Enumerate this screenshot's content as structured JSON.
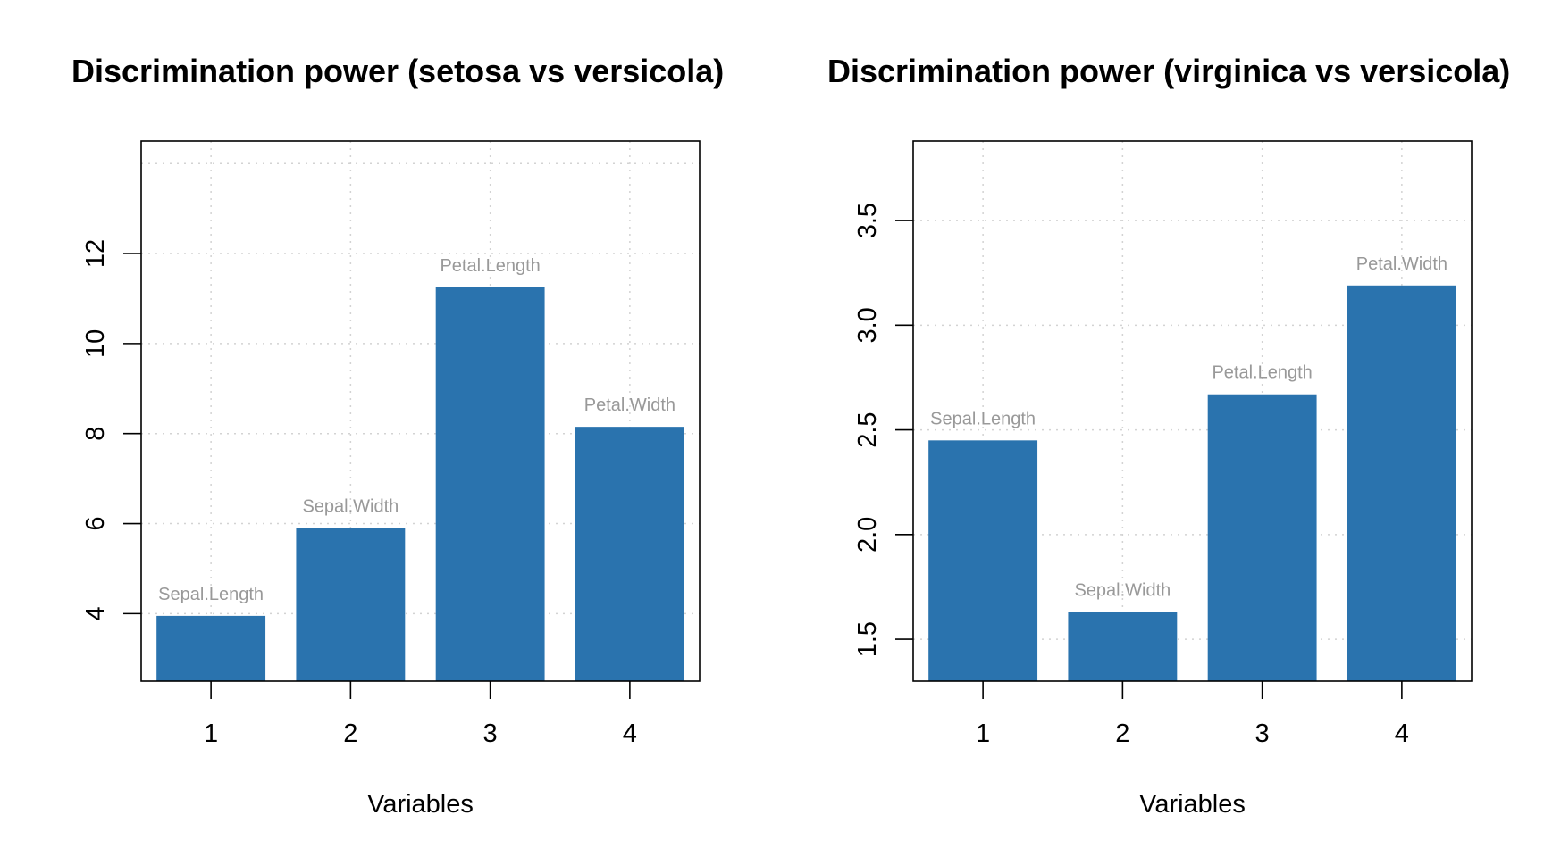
{
  "chart_data": [
    {
      "type": "bar",
      "title": "Discrimination power (setosa vs versicola)",
      "xlabel": "Variables",
      "ylabel": "",
      "categories": [
        "1",
        "2",
        "3",
        "4"
      ],
      "bar_labels": [
        "Sepal.Length",
        "Sepal.Width",
        "Petal.Length",
        "Petal.Width"
      ],
      "values": [
        3.95,
        5.9,
        11.25,
        8.15
      ],
      "ylim": [
        2.5,
        14.5
      ],
      "yticks": [
        4,
        6,
        8,
        10,
        12
      ],
      "grid": true,
      "bar_color": "#2a73ae"
    },
    {
      "type": "bar",
      "title": "Discrimination power (virginica vs versicola)",
      "xlabel": "Variables",
      "ylabel": "",
      "categories": [
        "1",
        "2",
        "3",
        "4"
      ],
      "bar_labels": [
        "Sepal.Length",
        "Sepal.Width",
        "Petal.Length",
        "Petal.Width"
      ],
      "values": [
        2.45,
        1.63,
        2.67,
        3.19
      ],
      "ylim": [
        1.3,
        3.88
      ],
      "yticks": [
        "1.5",
        "2.0",
        "2.5",
        "3.0",
        "3.5"
      ],
      "grid": true,
      "bar_color": "#2a73ae"
    }
  ]
}
